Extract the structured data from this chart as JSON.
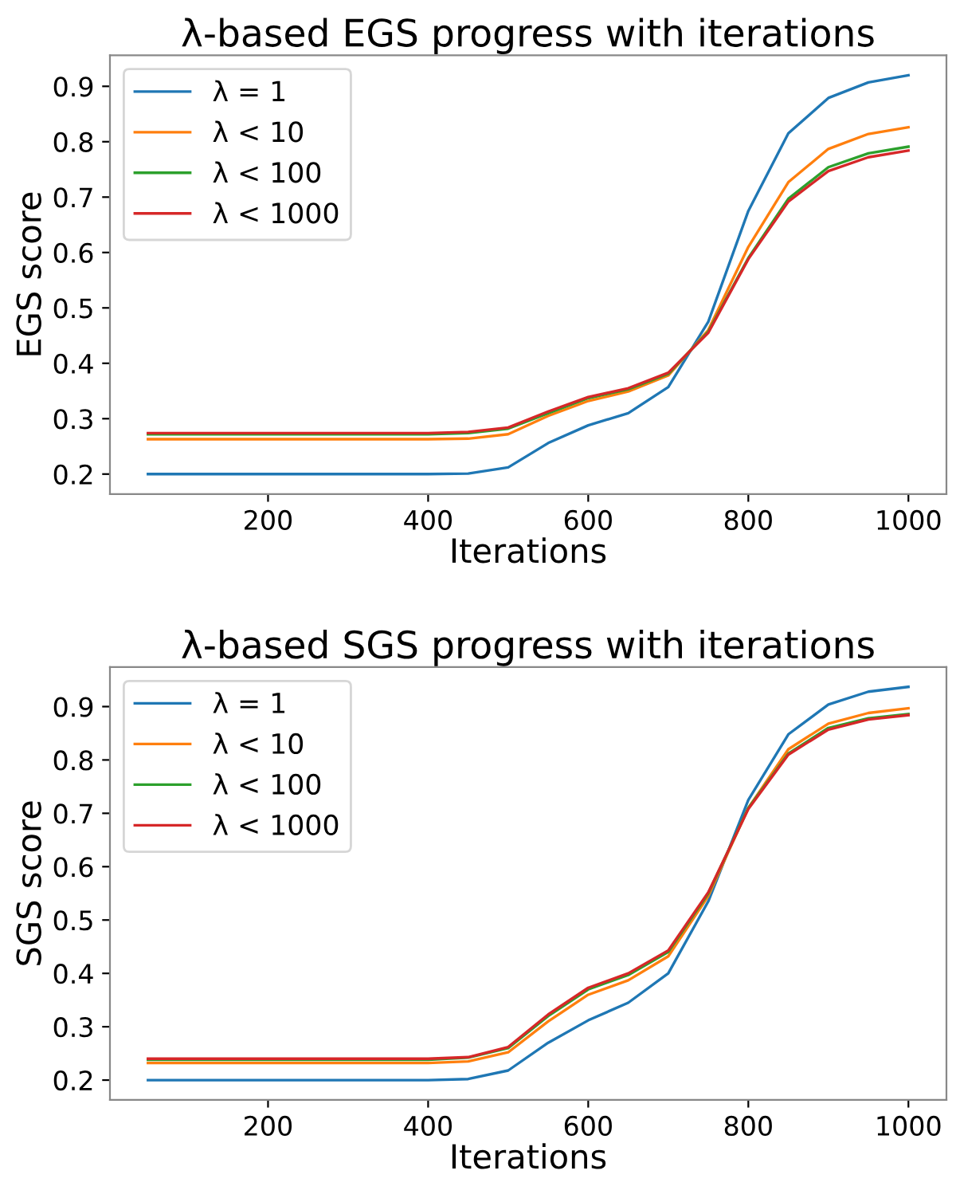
{
  "chart_data": [
    {
      "type": "line",
      "title": "λ-based EGS progress with iterations",
      "xlabel": "Iterations",
      "ylabel": "EGS score",
      "x": [
        50,
        100,
        150,
        200,
        250,
        300,
        350,
        400,
        450,
        500,
        550,
        600,
        650,
        700,
        750,
        800,
        850,
        900,
        950,
        1000
      ],
      "xlim": [
        2.5,
        1047.5
      ],
      "xticks": [
        200,
        400,
        600,
        800,
        1000
      ],
      "ylim": [
        0.164,
        0.956
      ],
      "yticks": [
        0.2,
        0.3,
        0.4,
        0.5,
        0.6,
        0.7,
        0.8,
        0.9
      ],
      "grid": false,
      "legend": "top left",
      "marker": "none",
      "line_style": "solid",
      "series": [
        {
          "name": "λ = 1",
          "color": "#1f77b4",
          "values": [
            0.2,
            0.2,
            0.2,
            0.2,
            0.2,
            0.2,
            0.2,
            0.2,
            0.201,
            0.212,
            0.256,
            0.288,
            0.31,
            0.357,
            0.475,
            0.675,
            0.815,
            0.879,
            0.907,
            0.92
          ]
        },
        {
          "name": "λ < 10",
          "color": "#ff7f0e",
          "values": [
            0.263,
            0.263,
            0.263,
            0.263,
            0.263,
            0.263,
            0.263,
            0.263,
            0.264,
            0.272,
            0.305,
            0.332,
            0.349,
            0.378,
            0.46,
            0.61,
            0.727,
            0.787,
            0.814,
            0.826
          ]
        },
        {
          "name": "λ < 100",
          "color": "#2ca02c",
          "values": [
            0.272,
            0.272,
            0.272,
            0.272,
            0.272,
            0.272,
            0.272,
            0.272,
            0.274,
            0.282,
            0.31,
            0.337,
            0.353,
            0.381,
            0.457,
            0.59,
            0.697,
            0.754,
            0.779,
            0.791
          ]
        },
        {
          "name": "λ < 1000",
          "color": "#d62728",
          "values": [
            0.274,
            0.274,
            0.274,
            0.274,
            0.274,
            0.274,
            0.274,
            0.274,
            0.276,
            0.284,
            0.313,
            0.339,
            0.355,
            0.383,
            0.455,
            0.588,
            0.692,
            0.747,
            0.772,
            0.784
          ]
        }
      ]
    },
    {
      "type": "line",
      "title": "λ-based SGS progress with iterations",
      "xlabel": "Iterations",
      "ylabel": "SGS score",
      "x": [
        50,
        100,
        150,
        200,
        250,
        300,
        350,
        400,
        450,
        500,
        550,
        600,
        650,
        700,
        750,
        800,
        850,
        900,
        950,
        1000
      ],
      "xlim": [
        2.5,
        1047.5
      ],
      "xticks": [
        200,
        400,
        600,
        800,
        1000
      ],
      "ylim": [
        0.163,
        0.974
      ],
      "yticks": [
        0.2,
        0.3,
        0.4,
        0.5,
        0.6,
        0.7,
        0.8,
        0.9
      ],
      "grid": false,
      "legend": "top left",
      "marker": "none",
      "line_style": "solid",
      "series": [
        {
          "name": "λ = 1",
          "color": "#1f77b4",
          "values": [
            0.2,
            0.2,
            0.2,
            0.2,
            0.2,
            0.2,
            0.2,
            0.2,
            0.202,
            0.218,
            0.27,
            0.312,
            0.345,
            0.4,
            0.535,
            0.725,
            0.848,
            0.904,
            0.928,
            0.937
          ]
        },
        {
          "name": "λ < 10",
          "color": "#ff7f0e",
          "values": [
            0.232,
            0.232,
            0.232,
            0.232,
            0.232,
            0.232,
            0.232,
            0.232,
            0.235,
            0.252,
            0.31,
            0.36,
            0.387,
            0.432,
            0.545,
            0.71,
            0.82,
            0.868,
            0.888,
            0.897
          ]
        },
        {
          "name": "λ < 100",
          "color": "#2ca02c",
          "values": [
            0.238,
            0.238,
            0.238,
            0.238,
            0.238,
            0.238,
            0.238,
            0.238,
            0.242,
            0.26,
            0.32,
            0.37,
            0.397,
            0.44,
            0.55,
            0.71,
            0.812,
            0.86,
            0.878,
            0.886
          ]
        },
        {
          "name": "λ < 1000",
          "color": "#d62728",
          "values": [
            0.24,
            0.24,
            0.24,
            0.24,
            0.24,
            0.24,
            0.24,
            0.24,
            0.243,
            0.262,
            0.323,
            0.373,
            0.4,
            0.443,
            0.552,
            0.708,
            0.81,
            0.857,
            0.876,
            0.884
          ]
        }
      ]
    }
  ]
}
